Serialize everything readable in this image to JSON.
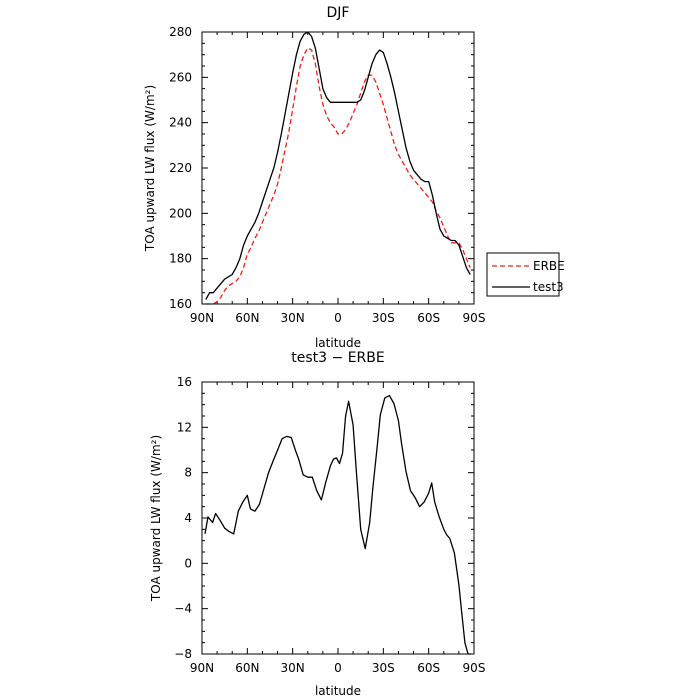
{
  "chart_data": [
    {
      "type": "line",
      "title": "DJF",
      "xlabel": "latitude",
      "ylabel": "TOA upward LW flux (W/m²)",
      "xlim": [
        -90,
        90
      ],
      "ylim": [
        160,
        280
      ],
      "x_ticks": [
        -90,
        -60,
        -30,
        0,
        30,
        60,
        90
      ],
      "x_tick_labels": [
        "90N",
        "60N",
        "30N",
        "0",
        "30S",
        "60S",
        "90S"
      ],
      "y_ticks": [
        160,
        180,
        200,
        220,
        240,
        260,
        280
      ],
      "y_tick_labels": [
        "160",
        "180",
        "200",
        "220",
        "240",
        "260",
        "280"
      ],
      "legend": "outside-right",
      "series": [
        {
          "name": "ERBE",
          "color": "#e8211b",
          "dash": "dashed",
          "x": [
            -87.5,
            -85,
            -82.5,
            -80,
            -77.5,
            -75,
            -72.5,
            -70,
            -67.5,
            -65,
            -62.5,
            -60,
            -57.5,
            -55,
            -52.5,
            -50,
            -47.5,
            -45,
            -42.5,
            -40,
            -37.5,
            -35,
            -32.5,
            -30,
            -27.5,
            -25,
            -22.5,
            -20,
            -17.5,
            -15,
            -12.5,
            -10,
            -7.5,
            -5,
            -2.5,
            0,
            2.5,
            5,
            7.5,
            10,
            12.5,
            15,
            17.5,
            20,
            22.5,
            25,
            27.5,
            30,
            32.5,
            35,
            37.5,
            40,
            42.5,
            45,
            47.5,
            50,
            52.5,
            55,
            57.5,
            60,
            62.5,
            65,
            67.5,
            70,
            72.5,
            75,
            77.5,
            80,
            82.5,
            85,
            87.5
          ],
          "y": [
            159,
            160,
            160,
            161,
            163,
            166,
            168,
            169,
            170,
            172,
            176,
            182,
            185,
            189,
            192,
            196,
            200,
            204,
            208,
            213,
            220,
            228,
            236,
            246,
            256,
            265,
            270,
            273,
            272,
            266,
            256,
            248,
            243,
            240,
            238,
            235,
            235,
            237,
            240,
            244,
            248,
            253,
            258,
            261,
            261,
            258,
            253,
            248,
            242,
            236,
            230,
            226,
            223,
            220,
            217,
            215,
            213,
            211,
            209,
            207,
            205,
            201,
            198,
            194,
            190,
            187,
            187,
            187,
            184,
            180,
            176
          ]
        },
        {
          "name": "test3",
          "color": "#000000",
          "dash": "solid",
          "x": [
            -87.5,
            -85,
            -82.5,
            -80,
            -77.5,
            -75,
            -72.5,
            -70,
            -67.5,
            -65,
            -62.5,
            -60,
            -57.5,
            -55,
            -52.5,
            -50,
            -47.5,
            -45,
            -42.5,
            -40,
            -37.5,
            -35,
            -32.5,
            -30,
            -27.5,
            -25,
            -22.5,
            -20,
            -17.5,
            -15,
            -12.5,
            -10,
            -7.5,
            -5,
            -2.5,
            0,
            2.5,
            5,
            7.5,
            10,
            12.5,
            15,
            17.5,
            20,
            22.5,
            25,
            27.5,
            30,
            32.5,
            35,
            37.5,
            40,
            42.5,
            45,
            47.5,
            50,
            52.5,
            55,
            57.5,
            60,
            62.5,
            65,
            67.5,
            70,
            72.5,
            75,
            77.5,
            80,
            82.5,
            85,
            87.5
          ],
          "y": [
            162,
            165,
            165,
            167,
            169,
            171,
            172,
            173,
            176,
            180,
            186,
            190,
            193,
            196,
            200,
            205,
            210,
            215,
            220,
            227,
            235,
            244,
            253,
            262,
            270,
            276,
            279,
            280,
            278,
            273,
            264,
            255,
            251,
            249,
            249,
            249,
            249,
            249,
            249,
            249,
            249,
            250,
            254,
            260,
            266,
            270,
            272,
            271,
            266,
            260,
            253,
            245,
            237,
            229,
            223,
            219,
            217,
            215,
            214,
            214,
            208,
            200,
            193,
            190,
            189,
            188,
            188,
            186,
            181,
            176,
            173
          ]
        }
      ]
    },
    {
      "type": "line",
      "title": "test3 − ERBE",
      "xlabel": "latitude",
      "ylabel": "TOA upward LW flux (W/m²)",
      "xlim": [
        -90,
        90
      ],
      "ylim": [
        -8,
        16
      ],
      "x_ticks": [
        -90,
        -60,
        -30,
        0,
        30,
        60,
        90
      ],
      "x_tick_labels": [
        "90N",
        "60N",
        "30N",
        "0",
        "30S",
        "60S",
        "90S"
      ],
      "y_ticks": [
        -8,
        -4,
        0,
        4,
        8,
        12,
        16
      ],
      "y_tick_labels": [
        "−8",
        "−4",
        "0",
        "4",
        "8",
        "12",
        "16"
      ],
      "series": [
        {
          "color": "#000000",
          "dash": "solid",
          "x": [
            -88,
            -86,
            -83,
            -81,
            -78,
            -75,
            -72,
            -69,
            -66,
            -63,
            -60,
            -58,
            -55,
            -52,
            -49,
            -46,
            -43,
            -40,
            -37,
            -34,
            -31,
            -28,
            -26,
            -23,
            -20,
            -17,
            -14,
            -11,
            -8,
            -5,
            -3,
            -1,
            1,
            3,
            5,
            7,
            10,
            12,
            15,
            18,
            21,
            23,
            26,
            28,
            31,
            34,
            37,
            40,
            42,
            45,
            48,
            51,
            54,
            57,
            60,
            62,
            64,
            67,
            70,
            72,
            74,
            77,
            80,
            82,
            84,
            86,
            88
          ],
          "y": [
            2.6,
            4.1,
            3.6,
            4.4,
            3.8,
            3.1,
            2.8,
            2.6,
            4.6,
            5.4,
            6.0,
            4.8,
            4.6,
            5.2,
            6.6,
            8.0,
            9.0,
            10.0,
            11.0,
            11.2,
            11.1,
            9.9,
            9.2,
            7.8,
            7.6,
            7.6,
            6.4,
            5.6,
            7.2,
            8.6,
            9.2,
            9.3,
            8.8,
            9.7,
            13.0,
            14.3,
            12.2,
            8.4,
            3.0,
            1.3,
            3.6,
            6.6,
            10.4,
            13.1,
            14.6,
            14.8,
            14.1,
            12.6,
            10.6,
            8.1,
            6.4,
            5.8,
            5.0,
            5.4,
            6.2,
            7.1,
            5.4,
            4.1,
            3.0,
            2.5,
            2.2,
            0.9,
            -1.9,
            -4.5,
            -7.0,
            -8.0,
            -8.0
          ]
        }
      ]
    }
  ]
}
